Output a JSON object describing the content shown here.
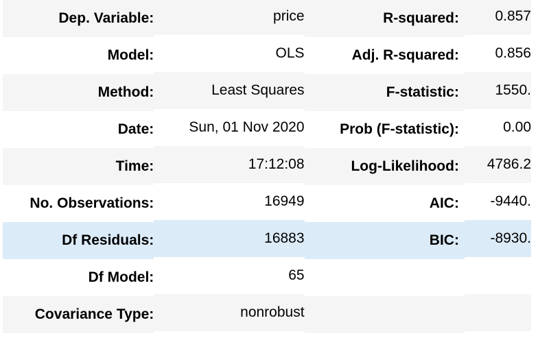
{
  "rows": [
    {
      "k1": "Dep. Variable:",
      "v1": "price",
      "k2": "R-squared:",
      "v2": "0.857"
    },
    {
      "k1": "Model:",
      "v1": "OLS",
      "k2": "Adj. R-squared:",
      "v2": "0.856"
    },
    {
      "k1": "Method:",
      "v1": "Least Squares",
      "k2": "F-statistic:",
      "v2": "1550."
    },
    {
      "k1": "Date:",
      "v1": "Sun, 01 Nov 2020",
      "k2": "Prob (F-statistic):",
      "v2": "0.00"
    },
    {
      "k1": "Time:",
      "v1": "17:12:08",
      "k2": "Log-Likelihood:",
      "v2": "4786.2"
    },
    {
      "k1": "No. Observations:",
      "v1": "16949",
      "k2": "AIC:",
      "v2": "-9440."
    },
    {
      "k1": "Df Residuals:",
      "v1": "16883",
      "k2": "BIC:",
      "v2": "-8930."
    },
    {
      "k1": "Df Model:",
      "v1": "65",
      "k2": "",
      "v2": ""
    },
    {
      "k1": "Covariance Type:",
      "v1": "nonrobust",
      "k2": "",
      "v2": ""
    }
  ],
  "colors": {
    "stripe": "#f5f5f5",
    "hover_row": "#dcebf8",
    "background": "#ffffff"
  }
}
